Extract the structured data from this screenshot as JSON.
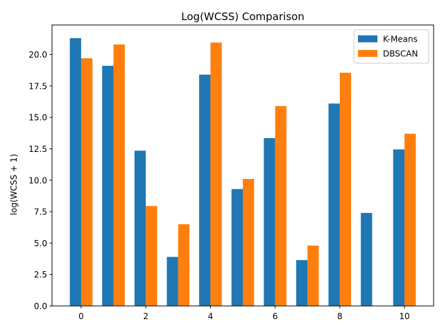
{
  "chart_data": {
    "type": "bar",
    "title": "Log(WCSS) Comparison",
    "xlabel": "",
    "ylabel": "log(WCSS + 1)",
    "x": [
      0,
      1,
      2,
      3,
      4,
      5,
      6,
      7,
      8,
      9,
      10
    ],
    "xticks": [
      0,
      2,
      4,
      6,
      8,
      10
    ],
    "xlim": [
      -0.9,
      10.9
    ],
    "ylim": [
      0,
      22.35
    ],
    "yticks": [
      0.0,
      2.5,
      5.0,
      7.5,
      10.0,
      12.5,
      15.0,
      17.5,
      20.0
    ],
    "grid": false,
    "legend_position": "top-right",
    "series": [
      {
        "name": "K-Means",
        "color": "#1f77b4",
        "values": [
          21.3,
          19.1,
          12.35,
          3.9,
          18.4,
          9.3,
          13.35,
          3.65,
          16.1,
          7.4,
          12.45
        ]
      },
      {
        "name": "DBSCAN",
        "color": "#ff7f0e",
        "values": [
          19.7,
          20.8,
          7.95,
          6.5,
          20.95,
          10.1,
          15.9,
          4.8,
          18.55,
          null,
          13.7
        ]
      }
    ]
  }
}
